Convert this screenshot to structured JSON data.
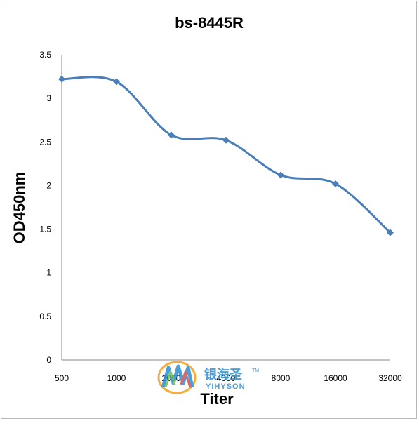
{
  "chart_data": {
    "type": "line",
    "title": "bs-8445R",
    "xlabel": "Titer",
    "ylabel": "OD450nm",
    "categories": [
      "500",
      "1000",
      "2000",
      "4000",
      "8000",
      "16000",
      "32000"
    ],
    "values": [
      3.22,
      3.19,
      2.58,
      2.52,
      2.12,
      2.02,
      1.46
    ],
    "ylim": [
      0,
      3.5
    ],
    "yticks": [
      "0",
      "0.5",
      "1",
      "1.5",
      "2",
      "2.5",
      "3",
      "3.5"
    ],
    "series_color": "#4a7ebb",
    "grid": false,
    "legend": "none"
  },
  "watermark": {
    "cn": "银海圣",
    "en": "YIHYSON",
    "tm": "TM"
  }
}
